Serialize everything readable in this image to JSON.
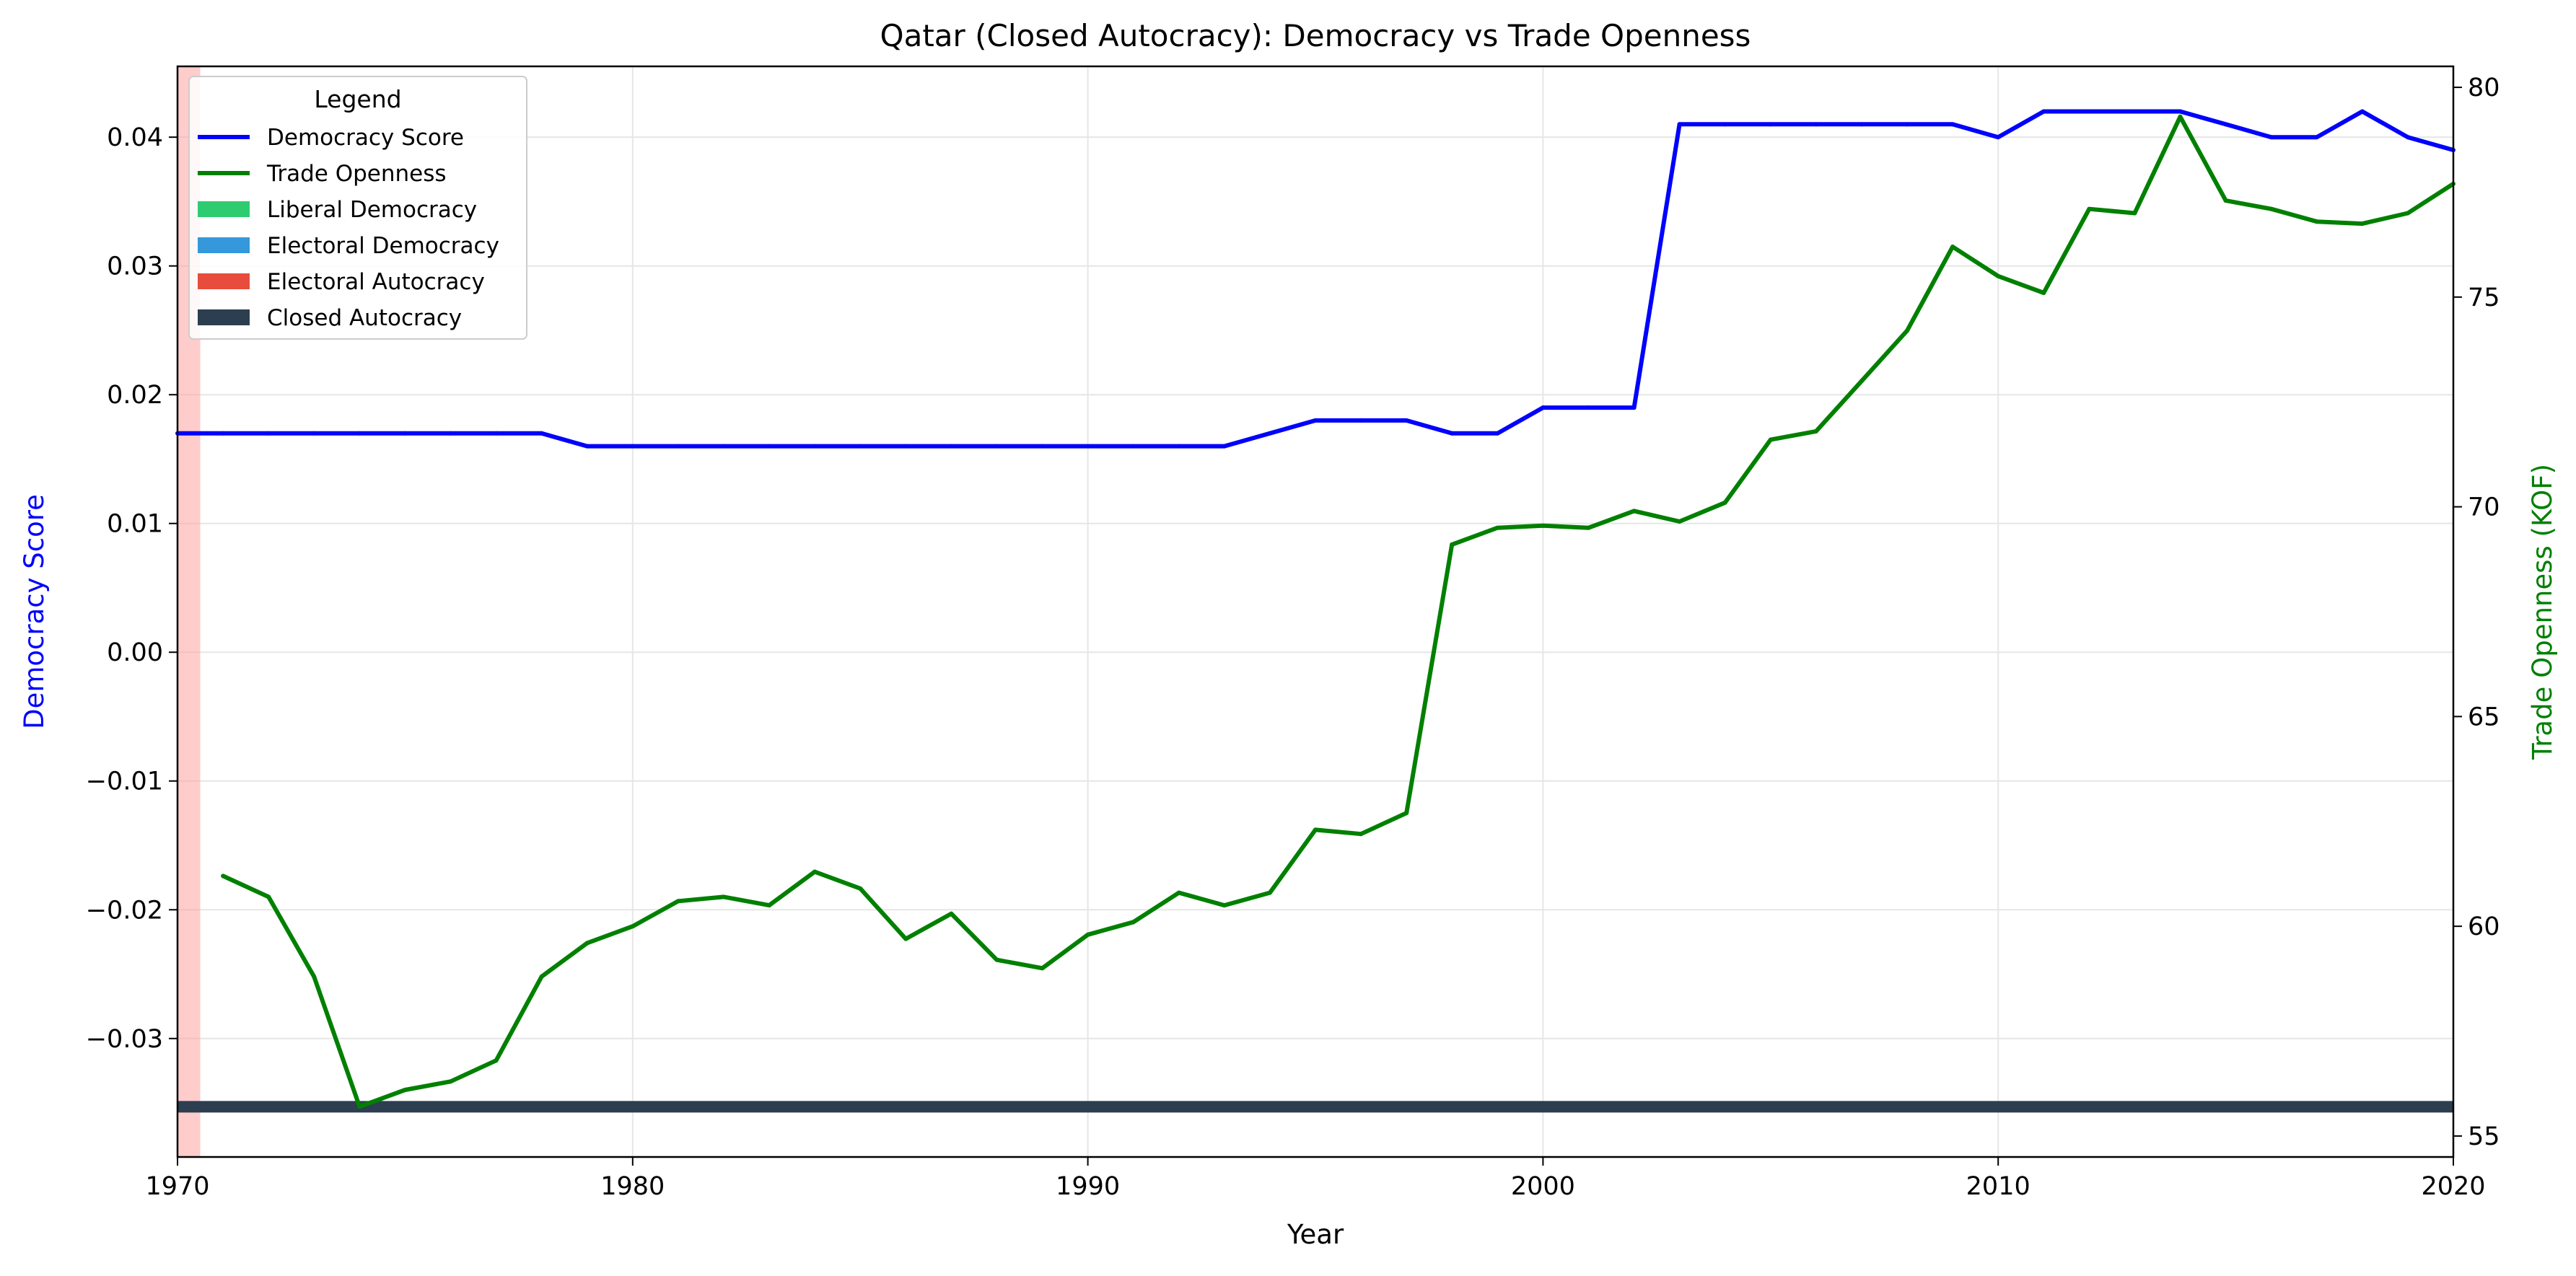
{
  "chart_data": {
    "type": "line",
    "title": "Qatar (Closed Autocracy): Democracy vs Trade Openness",
    "xlabel": "Year",
    "ylabel_left": "Democracy Score",
    "ylabel_right": "Trade Openness (KOF)",
    "xlim": [
      1970,
      2020
    ],
    "ylim_left": [
      -0.0392,
      0.0455
    ],
    "ylim_right": [
      54.5,
      80.5
    ],
    "x_ticks": [
      "1970",
      "1980",
      "1990",
      "2000",
      "2010",
      "2020"
    ],
    "y_left_ticks": [
      "−0.03",
      "−0.02",
      "−0.01",
      "0.00",
      "0.01",
      "0.02",
      "0.03",
      "0.04"
    ],
    "y_right_ticks": [
      "55",
      "60",
      "65",
      "70",
      "75",
      "80"
    ],
    "grid": true,
    "legend": {
      "title": "Legend",
      "placement": "upper-left",
      "entries": [
        {
          "label": "Democracy Score",
          "kind": "line",
          "color": "#0000ff"
        },
        {
          "label": "Trade Openness",
          "kind": "line",
          "color": "#008000"
        },
        {
          "label": "Liberal Democracy",
          "kind": "patch",
          "color": "#2ecc71"
        },
        {
          "label": "Electoral Democracy",
          "kind": "patch",
          "color": "#3498db"
        },
        {
          "label": "Electoral Autocracy",
          "kind": "patch",
          "color": "#e74c3c"
        },
        {
          "label": "Closed Autocracy",
          "kind": "patch",
          "color": "#2c3e50"
        }
      ]
    },
    "series": [
      {
        "name": "Democracy Score",
        "axis": "left",
        "color": "#0000ff",
        "x": [
          1970,
          1971,
          1972,
          1973,
          1974,
          1975,
          1976,
          1977,
          1978,
          1979,
          1980,
          1981,
          1982,
          1983,
          1984,
          1985,
          1986,
          1987,
          1988,
          1989,
          1990,
          1991,
          1992,
          1993,
          1994,
          1995,
          1996,
          1997,
          1998,
          1999,
          2000,
          2001,
          2002,
          2003,
          2004,
          2005,
          2006,
          2007,
          2008,
          2009,
          2010,
          2011,
          2012,
          2013,
          2014,
          2015,
          2016,
          2017,
          2018,
          2019,
          2020
        ],
        "y": [
          0.017,
          0.017,
          0.017,
          0.017,
          0.017,
          0.017,
          0.017,
          0.017,
          0.017,
          0.016,
          0.016,
          0.016,
          0.016,
          0.016,
          0.016,
          0.016,
          0.016,
          0.016,
          0.016,
          0.016,
          0.016,
          0.016,
          0.016,
          0.016,
          0.017,
          0.018,
          0.018,
          0.018,
          0.017,
          0.017,
          0.019,
          0.019,
          0.019,
          0.041,
          0.041,
          0.041,
          0.041,
          0.041,
          0.041,
          0.041,
          0.04,
          0.042,
          0.042,
          0.042,
          0.042,
          0.041,
          0.04,
          0.04,
          0.042,
          0.04,
          0.039
        ]
      },
      {
        "name": "Trade Openness",
        "axis": "right",
        "color": "#008000",
        "x": [
          1971,
          1972,
          1973,
          1974,
          1975,
          1976,
          1977,
          1978,
          1979,
          1980,
          1981,
          1982,
          1983,
          1984,
          1985,
          1986,
          1987,
          1988,
          1989,
          1990,
          1991,
          1992,
          1993,
          1994,
          1995,
          1996,
          1997,
          1998,
          1999,
          2000,
          2001,
          2002,
          2003,
          2004,
          2005,
          2006,
          2007,
          2008,
          2009,
          2010,
          2011,
          2012,
          2013,
          2014,
          2015,
          2016,
          2017,
          2018,
          2019,
          2020
        ],
        "y": [
          61.2,
          60.7,
          58.8,
          55.7,
          56.1,
          56.3,
          56.8,
          58.8,
          59.6,
          60.0,
          60.6,
          60.7,
          60.5,
          61.3,
          60.9,
          59.7,
          60.3,
          59.2,
          59.0,
          59.8,
          60.1,
          60.8,
          60.5,
          60.8,
          62.3,
          62.2,
          62.7,
          69.1,
          69.5,
          69.55,
          69.5,
          69.9,
          69.65,
          70.1,
          71.6,
          71.8,
          73.0,
          74.2,
          76.2,
          75.5,
          75.1,
          77.1,
          77.0,
          79.3,
          77.3,
          77.1,
          76.8,
          76.75,
          77.0,
          77.7
        ]
      }
    ],
    "regime_bands": [
      {
        "regime": "Electoral Autocracy",
        "color": "#ff9999",
        "x_start": 1970,
        "x_end": 1970.5
      },
      {
        "regime": "Closed Autocracy",
        "color": "#2c3e50",
        "x_start": 1970,
        "x_end": 2020,
        "y_left": -0.0353
      }
    ]
  }
}
